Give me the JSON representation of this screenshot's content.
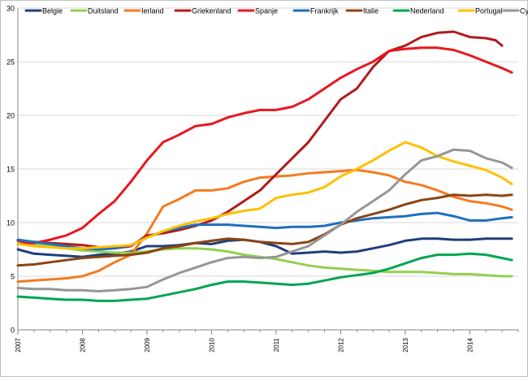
{
  "chart_data": {
    "type": "line",
    "title": "",
    "xlabel": "",
    "ylabel": "",
    "xlim": [
      2007.0,
      2014.75
    ],
    "ylim": [
      0,
      30
    ],
    "y_ticks": [
      0,
      5,
      10,
      15,
      20,
      25,
      30
    ],
    "x_ticks": [
      {
        "x": 2007,
        "label": "2007"
      },
      {
        "x": 2008,
        "label": "2008"
      },
      {
        "x": 2009,
        "label": "2009"
      },
      {
        "x": 2010,
        "label": "2010"
      },
      {
        "x": 2011,
        "label": "2011"
      },
      {
        "x": 2012,
        "label": "2012"
      },
      {
        "x": 2013,
        "label": "2013"
      },
      {
        "x": 2014,
        "label": "2014"
      }
    ],
    "grid": "horizontal",
    "legend_position": "top",
    "series": [
      {
        "name": "Belgie",
        "color": "#1f3f7a",
        "x": [
          2007.0,
          2007.25,
          2007.5,
          2007.75,
          2008.0,
          2008.25,
          2008.5,
          2008.75,
          2009.0,
          2009.25,
          2009.5,
          2009.75,
          2010.0,
          2010.25,
          2010.5,
          2010.75,
          2011.0,
          2011.25,
          2011.5,
          2011.75,
          2012.0,
          2012.25,
          2012.5,
          2012.75,
          2013.0,
          2013.25,
          2013.5,
          2013.75,
          2014.0,
          2014.25,
          2014.5,
          2014.65
        ],
        "y": [
          7.5,
          7.1,
          7.0,
          6.9,
          6.8,
          7.0,
          7.1,
          7.3,
          7.8,
          7.8,
          7.9,
          8.1,
          8.0,
          8.3,
          8.4,
          8.2,
          7.8,
          7.1,
          7.2,
          7.3,
          7.2,
          7.3,
          7.6,
          7.9,
          8.3,
          8.5,
          8.5,
          8.4,
          8.4,
          8.5,
          8.5,
          8.5
        ]
      },
      {
        "name": "Duitsland",
        "color": "#92d050",
        "x": [
          2007.0,
          2007.25,
          2007.5,
          2007.75,
          2008.0,
          2008.25,
          2008.5,
          2008.75,
          2009.0,
          2009.25,
          2009.5,
          2009.75,
          2010.0,
          2010.25,
          2010.5,
          2010.75,
          2011.0,
          2011.25,
          2011.5,
          2011.75,
          2012.0,
          2012.25,
          2012.5,
          2012.75,
          2013.0,
          2013.25,
          2013.5,
          2013.75,
          2014.0,
          2014.25,
          2014.5,
          2014.65
        ],
        "y": [
          8.3,
          8.0,
          7.8,
          7.6,
          7.4,
          7.3,
          7.2,
          7.2,
          7.3,
          7.5,
          7.6,
          7.6,
          7.5,
          7.3,
          7.0,
          6.8,
          6.6,
          6.3,
          6.0,
          5.8,
          5.7,
          5.6,
          5.5,
          5.4,
          5.4,
          5.4,
          5.3,
          5.2,
          5.2,
          5.1,
          5.0,
          5.0
        ]
      },
      {
        "name": "Ierland",
        "color": "#f47b20",
        "x": [
          2007.0,
          2007.25,
          2007.5,
          2007.75,
          2008.0,
          2008.25,
          2008.5,
          2008.75,
          2009.0,
          2009.25,
          2009.5,
          2009.75,
          2010.0,
          2010.25,
          2010.5,
          2010.75,
          2011.0,
          2011.25,
          2011.5,
          2011.75,
          2012.0,
          2012.25,
          2012.5,
          2012.75,
          2013.0,
          2013.25,
          2013.5,
          2013.75,
          2014.0,
          2014.25,
          2014.5,
          2014.65
        ],
        "y": [
          4.5,
          4.6,
          4.7,
          4.8,
          5.0,
          5.5,
          6.3,
          7.0,
          9.0,
          11.5,
          12.2,
          13.0,
          13.0,
          13.2,
          13.8,
          14.2,
          14.3,
          14.4,
          14.6,
          14.7,
          14.8,
          14.9,
          14.7,
          14.4,
          13.8,
          13.5,
          13.0,
          12.4,
          12.0,
          11.8,
          11.5,
          11.2
        ]
      },
      {
        "name": "Griekenland",
        "color": "#b01c1c",
        "x": [
          2007.0,
          2007.25,
          2007.5,
          2007.75,
          2008.0,
          2008.25,
          2008.5,
          2008.75,
          2009.0,
          2009.25,
          2009.5,
          2009.75,
          2010.0,
          2010.25,
          2010.5,
          2010.75,
          2011.0,
          2011.25,
          2011.5,
          2011.75,
          2012.0,
          2012.25,
          2012.5,
          2012.75,
          2013.0,
          2013.25,
          2013.5,
          2013.75,
          2014.0,
          2014.25,
          2014.4,
          2014.5
        ],
        "y": [
          8.3,
          8.2,
          8.1,
          8.0,
          7.9,
          7.7,
          7.6,
          7.8,
          8.8,
          9.0,
          9.3,
          9.7,
          10.2,
          11.0,
          12.0,
          13.0,
          14.5,
          16.0,
          17.5,
          19.5,
          21.5,
          22.5,
          24.5,
          26.0,
          26.5,
          27.3,
          27.7,
          27.8,
          27.3,
          27.2,
          27.0,
          26.5
        ]
      },
      {
        "name": "Spanje",
        "color": "#e8171f",
        "x": [
          2007.0,
          2007.25,
          2007.5,
          2007.75,
          2008.0,
          2008.25,
          2008.5,
          2008.75,
          2009.0,
          2009.25,
          2009.5,
          2009.75,
          2010.0,
          2010.25,
          2010.5,
          2010.75,
          2011.0,
          2011.25,
          2011.5,
          2011.75,
          2012.0,
          2012.25,
          2012.5,
          2012.75,
          2013.0,
          2013.25,
          2013.5,
          2013.75,
          2014.0,
          2014.25,
          2014.5,
          2014.65
        ],
        "y": [
          8.0,
          8.1,
          8.4,
          8.8,
          9.5,
          10.8,
          12.0,
          13.8,
          15.8,
          17.5,
          18.2,
          19.0,
          19.2,
          19.8,
          20.2,
          20.5,
          20.5,
          20.8,
          21.5,
          22.5,
          23.5,
          24.3,
          25.0,
          26.0,
          26.2,
          26.3,
          26.3,
          26.1,
          25.6,
          25.0,
          24.4,
          24.0
        ]
      },
      {
        "name": "Frankrijk",
        "color": "#1f6fc0",
        "x": [
          2007.0,
          2007.25,
          2007.5,
          2007.75,
          2008.0,
          2008.25,
          2008.5,
          2008.75,
          2009.0,
          2009.25,
          2009.5,
          2009.75,
          2010.0,
          2010.25,
          2010.5,
          2010.75,
          2011.0,
          2011.25,
          2011.5,
          2011.75,
          2012.0,
          2012.25,
          2012.5,
          2012.75,
          2013.0,
          2013.25,
          2013.5,
          2013.75,
          2014.0,
          2014.25,
          2014.5,
          2014.65
        ],
        "y": [
          8.4,
          8.2,
          8.0,
          7.8,
          7.6,
          7.5,
          7.6,
          7.9,
          8.6,
          9.2,
          9.5,
          9.8,
          9.8,
          9.8,
          9.7,
          9.6,
          9.5,
          9.6,
          9.6,
          9.7,
          10.0,
          10.2,
          10.4,
          10.5,
          10.6,
          10.8,
          10.9,
          10.6,
          10.2,
          10.2,
          10.4,
          10.5
        ]
      },
      {
        "name": "Italie",
        "color": "#8b4513",
        "x": [
          2007.0,
          2007.25,
          2007.5,
          2007.75,
          2008.0,
          2008.25,
          2008.5,
          2008.75,
          2009.0,
          2009.25,
          2009.5,
          2009.75,
          2010.0,
          2010.25,
          2010.5,
          2010.75,
          2011.0,
          2011.25,
          2011.5,
          2011.75,
          2012.0,
          2012.25,
          2012.5,
          2012.75,
          2013.0,
          2013.25,
          2013.5,
          2013.75,
          2014.0,
          2014.25,
          2014.5,
          2014.65
        ],
        "y": [
          6.0,
          6.1,
          6.3,
          6.5,
          6.7,
          6.8,
          6.9,
          7.0,
          7.2,
          7.6,
          7.8,
          8.1,
          8.3,
          8.5,
          8.4,
          8.2,
          8.1,
          8.0,
          8.2,
          8.9,
          9.8,
          10.4,
          10.8,
          11.2,
          11.7,
          12.1,
          12.3,
          12.6,
          12.5,
          12.6,
          12.5,
          12.6
        ]
      },
      {
        "name": "Nederland",
        "color": "#00a651",
        "x": [
          2007.0,
          2007.25,
          2007.5,
          2007.75,
          2008.0,
          2008.25,
          2008.5,
          2008.75,
          2009.0,
          2009.25,
          2009.5,
          2009.75,
          2010.0,
          2010.25,
          2010.5,
          2010.75,
          2011.0,
          2011.25,
          2011.5,
          2011.75,
          2012.0,
          2012.25,
          2012.5,
          2012.75,
          2013.0,
          2013.25,
          2013.5,
          2013.75,
          2014.0,
          2014.25,
          2014.5,
          2014.65
        ],
        "y": [
          3.1,
          3.0,
          2.9,
          2.8,
          2.8,
          2.7,
          2.7,
          2.8,
          2.9,
          3.2,
          3.5,
          3.8,
          4.2,
          4.5,
          4.5,
          4.4,
          4.3,
          4.2,
          4.3,
          4.6,
          4.9,
          5.1,
          5.3,
          5.7,
          6.2,
          6.7,
          7.0,
          7.0,
          7.1,
          7.0,
          6.7,
          6.5
        ]
      },
      {
        "name": "Portugal",
        "color": "#ffc000",
        "x": [
          2007.0,
          2007.25,
          2007.5,
          2007.75,
          2008.0,
          2008.25,
          2008.5,
          2008.75,
          2009.0,
          2009.25,
          2009.5,
          2009.75,
          2010.0,
          2010.25,
          2010.5,
          2010.75,
          2011.0,
          2011.25,
          2011.5,
          2011.75,
          2012.0,
          2012.25,
          2012.5,
          2012.75,
          2013.0,
          2013.25,
          2013.5,
          2013.75,
          2014.0,
          2014.25,
          2014.5,
          2014.65
        ],
        "y": [
          8.0,
          7.8,
          7.7,
          7.6,
          7.6,
          7.7,
          7.8,
          7.9,
          8.6,
          9.2,
          9.7,
          10.1,
          10.4,
          10.8,
          11.1,
          11.3,
          12.3,
          12.6,
          12.8,
          13.3,
          14.3,
          15.0,
          15.8,
          16.7,
          17.5,
          17.0,
          16.2,
          15.7,
          15.3,
          14.9,
          14.2,
          13.6
        ]
      },
      {
        "name": "Cyprus",
        "color": "#969696",
        "x": [
          2007.0,
          2007.25,
          2007.5,
          2007.75,
          2008.0,
          2008.25,
          2008.5,
          2008.75,
          2009.0,
          2009.25,
          2009.5,
          2009.75,
          2010.0,
          2010.25,
          2010.5,
          2010.75,
          2011.0,
          2011.25,
          2011.5,
          2011.75,
          2012.0,
          2012.25,
          2012.5,
          2012.75,
          2013.0,
          2013.25,
          2013.5,
          2013.75,
          2014.0,
          2014.25,
          2014.5,
          2014.65
        ],
        "y": [
          3.9,
          3.8,
          3.8,
          3.7,
          3.7,
          3.6,
          3.7,
          3.8,
          4.0,
          4.7,
          5.3,
          5.8,
          6.3,
          6.7,
          6.8,
          6.7,
          6.8,
          7.3,
          7.8,
          8.8,
          9.8,
          11.0,
          12.0,
          13.0,
          14.5,
          15.8,
          16.2,
          16.8,
          16.7,
          16.0,
          15.6,
          15.1
        ]
      }
    ]
  }
}
